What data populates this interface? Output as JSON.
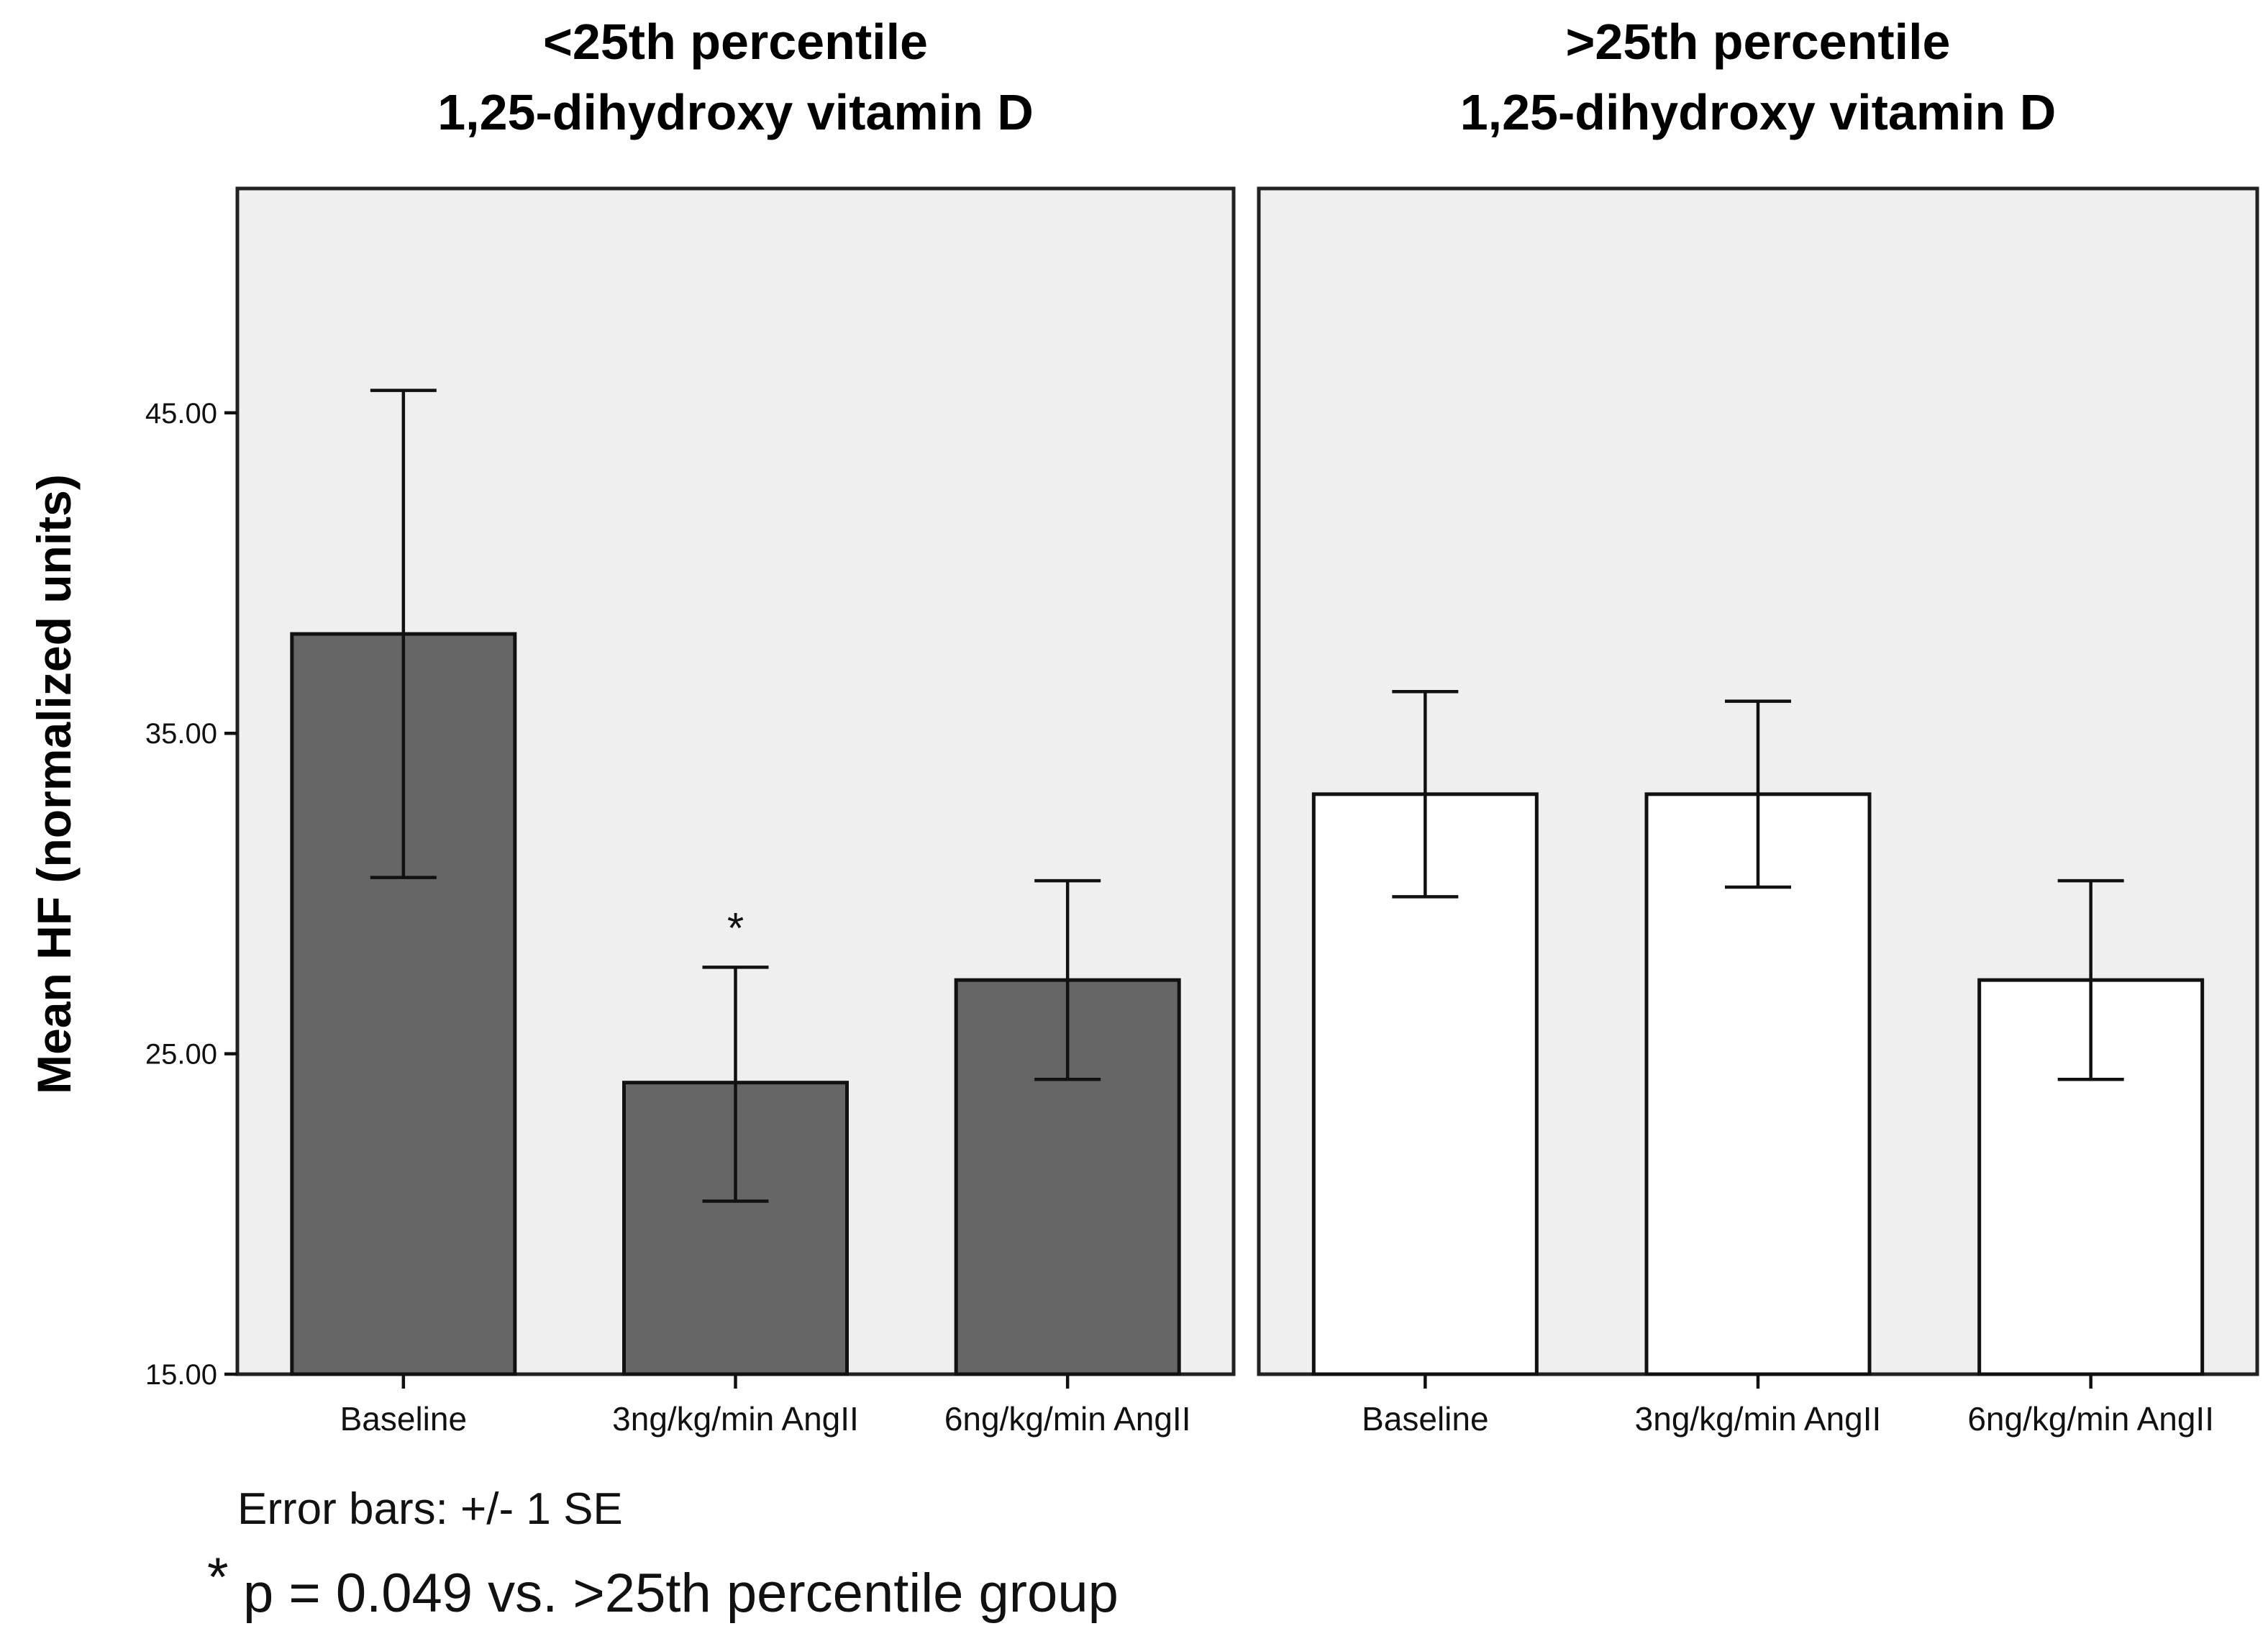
{
  "chart_data": {
    "type": "bar",
    "ylabel": "Mean HF (normalized units)",
    "ylim": [
      15,
      52
    ],
    "yticks": [
      15,
      25,
      35,
      45
    ],
    "ytick_labels": [
      "15.00",
      "25.00",
      "35.00",
      "45.00"
    ],
    "categories": [
      "Baseline",
      "3ng/kg/min AngII",
      "6ng/kg/min AngII"
    ],
    "panels": [
      {
        "title_line1": "<25th percentile",
        "title_line2": "1,25-dihydroxy vitamin D",
        "bar_color": "#666666",
        "values": [
          38.1,
          24.1,
          27.3
        ],
        "error_low": [
          30.5,
          20.4,
          24.2
        ],
        "error_high": [
          45.7,
          27.7,
          30.4
        ],
        "annotations": [
          null,
          "*",
          null
        ]
      },
      {
        "title_line1": ">25th percentile",
        "title_line2": "1,25-dihydroxy vitamin D",
        "bar_color": "#ffffff",
        "values": [
          33.1,
          33.1,
          27.3
        ],
        "error_low": [
          29.9,
          30.2,
          24.2
        ],
        "error_high": [
          36.3,
          36.0,
          30.4
        ],
        "annotations": [
          null,
          null,
          null
        ]
      }
    ],
    "error_bar_note": "Error bars: +/- 1 SE",
    "footnote_symbol": "*",
    "footnote": "p = 0.049 vs. >25th percentile group"
  }
}
